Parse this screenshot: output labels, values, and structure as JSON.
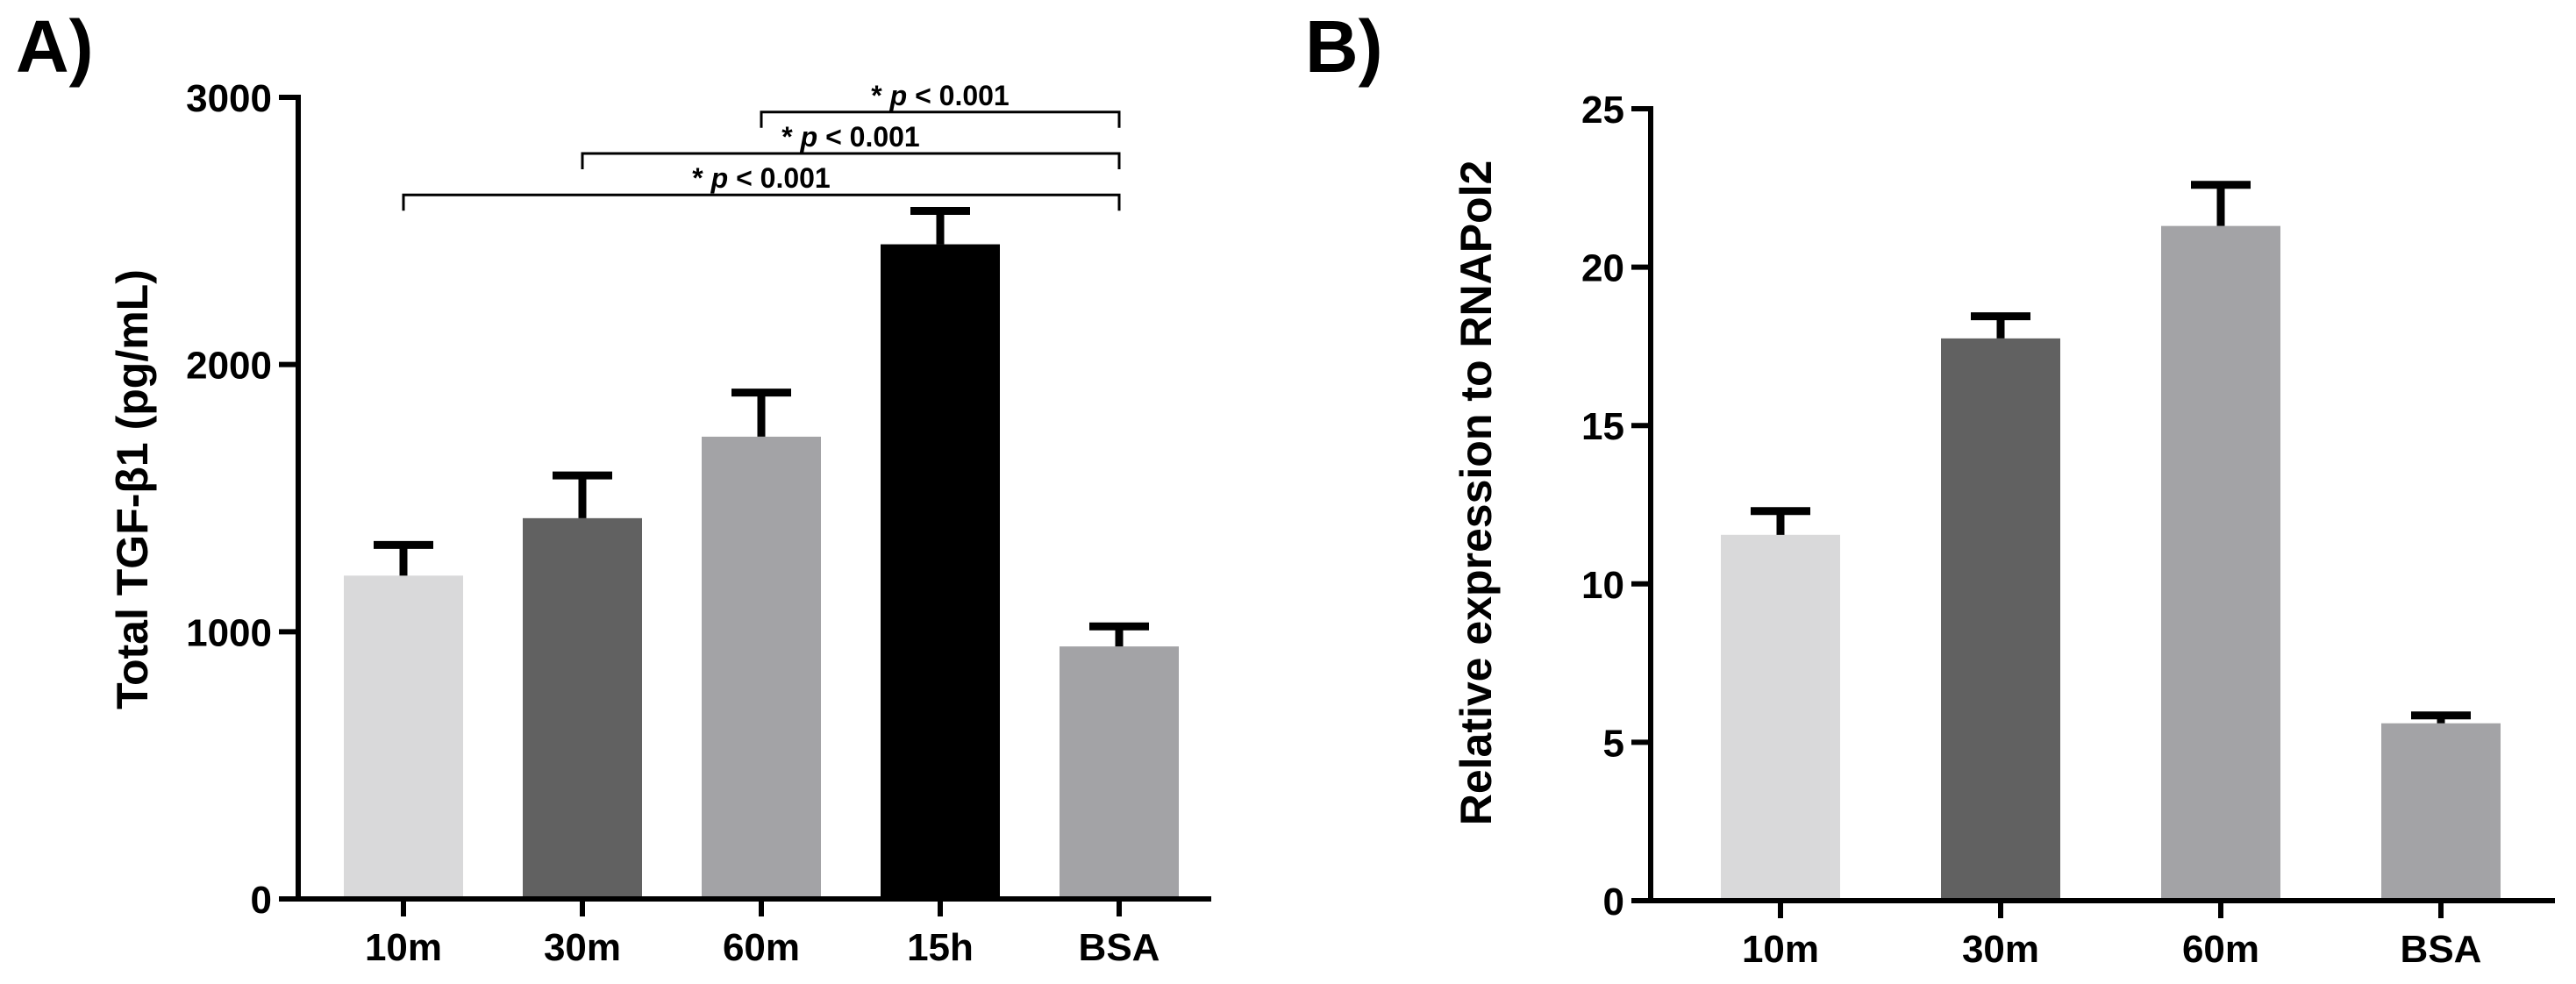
{
  "chart_data": [
    {
      "panel_label": "A)",
      "type": "bar",
      "ylabel": "Total TGF-β1 (pg/mL)",
      "xlabel": "",
      "ylim": [
        0,
        3000
      ],
      "yticks": [
        0,
        1000,
        2000,
        3000
      ],
      "categories": [
        "10m",
        "30m",
        "60m",
        "15h",
        "BSA"
      ],
      "values": [
        1210,
        1425,
        1730,
        2450,
        945
      ],
      "errors": [
        115,
        160,
        165,
        125,
        75
      ],
      "colors": [
        "#d9d9da",
        "#616161",
        "#a3a3a6",
        "#000000",
        "#a3a3a6"
      ],
      "annotations": [
        {
          "from": "60m",
          "to": "BSA",
          "label": "* p < 0.001",
          "y": 2945
        },
        {
          "from": "30m",
          "to": "BSA",
          "label": "* p < 0.001",
          "y": 2790
        },
        {
          "from": "10m",
          "to": "BSA",
          "label": "* p < 0.001",
          "y": 2635
        }
      ]
    },
    {
      "panel_label": "B)",
      "type": "bar",
      "ylabel": "Relative expression to RNAPol2",
      "xlabel": "",
      "ylim": [
        0,
        25
      ],
      "yticks": [
        0,
        5,
        10,
        15,
        20,
        25
      ],
      "categories": [
        "10m",
        "30m",
        "60m",
        "BSA"
      ],
      "values": [
        11.55,
        17.75,
        21.3,
        5.6
      ],
      "errors": [
        0.75,
        0.7,
        1.3,
        0.25
      ],
      "colors": [
        "#d9d9da",
        "#616161",
        "#a3a3a6",
        "#a3a3a6"
      ],
      "annotations": []
    }
  ]
}
